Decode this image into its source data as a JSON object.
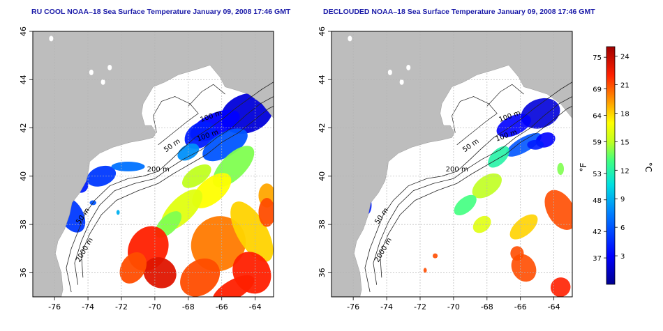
{
  "panels": [
    {
      "title": "RU COOL NOAA–18 Sea Surface Temperature January 09, 2008 17:46 GMT",
      "variant": "raw",
      "contour_labels": [
        "100 m",
        "100 m",
        "50 m",
        "200 m",
        "50 m",
        "2000 m"
      ]
    },
    {
      "title": "DECLOUDED NOAA–18 Sea Surface Temperature January 09, 2008 17:46 GMT",
      "variant": "declouded",
      "contour_labels": [
        "100 m",
        "100 m",
        "50 m",
        "200 m",
        "50 m",
        "2000 m"
      ]
    }
  ],
  "axes": {
    "x_ticks": [
      "-76",
      "-74",
      "-72",
      "-70",
      "-68",
      "-66",
      "-64"
    ],
    "x_values": [
      -76,
      -74,
      -72,
      -70,
      -68,
      -66,
      -64
    ],
    "y_ticks": [
      "36",
      "38",
      "40",
      "42",
      "44",
      "46"
    ],
    "y_values": [
      36,
      38,
      40,
      42,
      44,
      46
    ],
    "lon_range": [
      -77.3,
      -62.9
    ],
    "lat_range": [
      35.0,
      46.0
    ]
  },
  "colorbar": {
    "fahrenheit_unit": "°F",
    "celsius_unit": "°C",
    "fahrenheit_ticks": [
      "75",
      "69",
      "64",
      "59",
      "53",
      "48",
      "42",
      "37"
    ],
    "fahrenheit_values": [
      75,
      69,
      64,
      59,
      53,
      48,
      42,
      37
    ],
    "celsius_ticks": [
      "24",
      "21",
      "18",
      "15",
      "12",
      "9",
      "6",
      "3"
    ],
    "celsius_values": [
      24,
      21,
      18,
      15,
      12,
      9,
      6,
      3
    ],
    "celsius_range": [
      0,
      25
    ]
  },
  "colors": {
    "land": "#bdbdbd",
    "ocean": "#ffffff",
    "title": "#1a1aa8",
    "grid": "#b4b4b4"
  }
}
